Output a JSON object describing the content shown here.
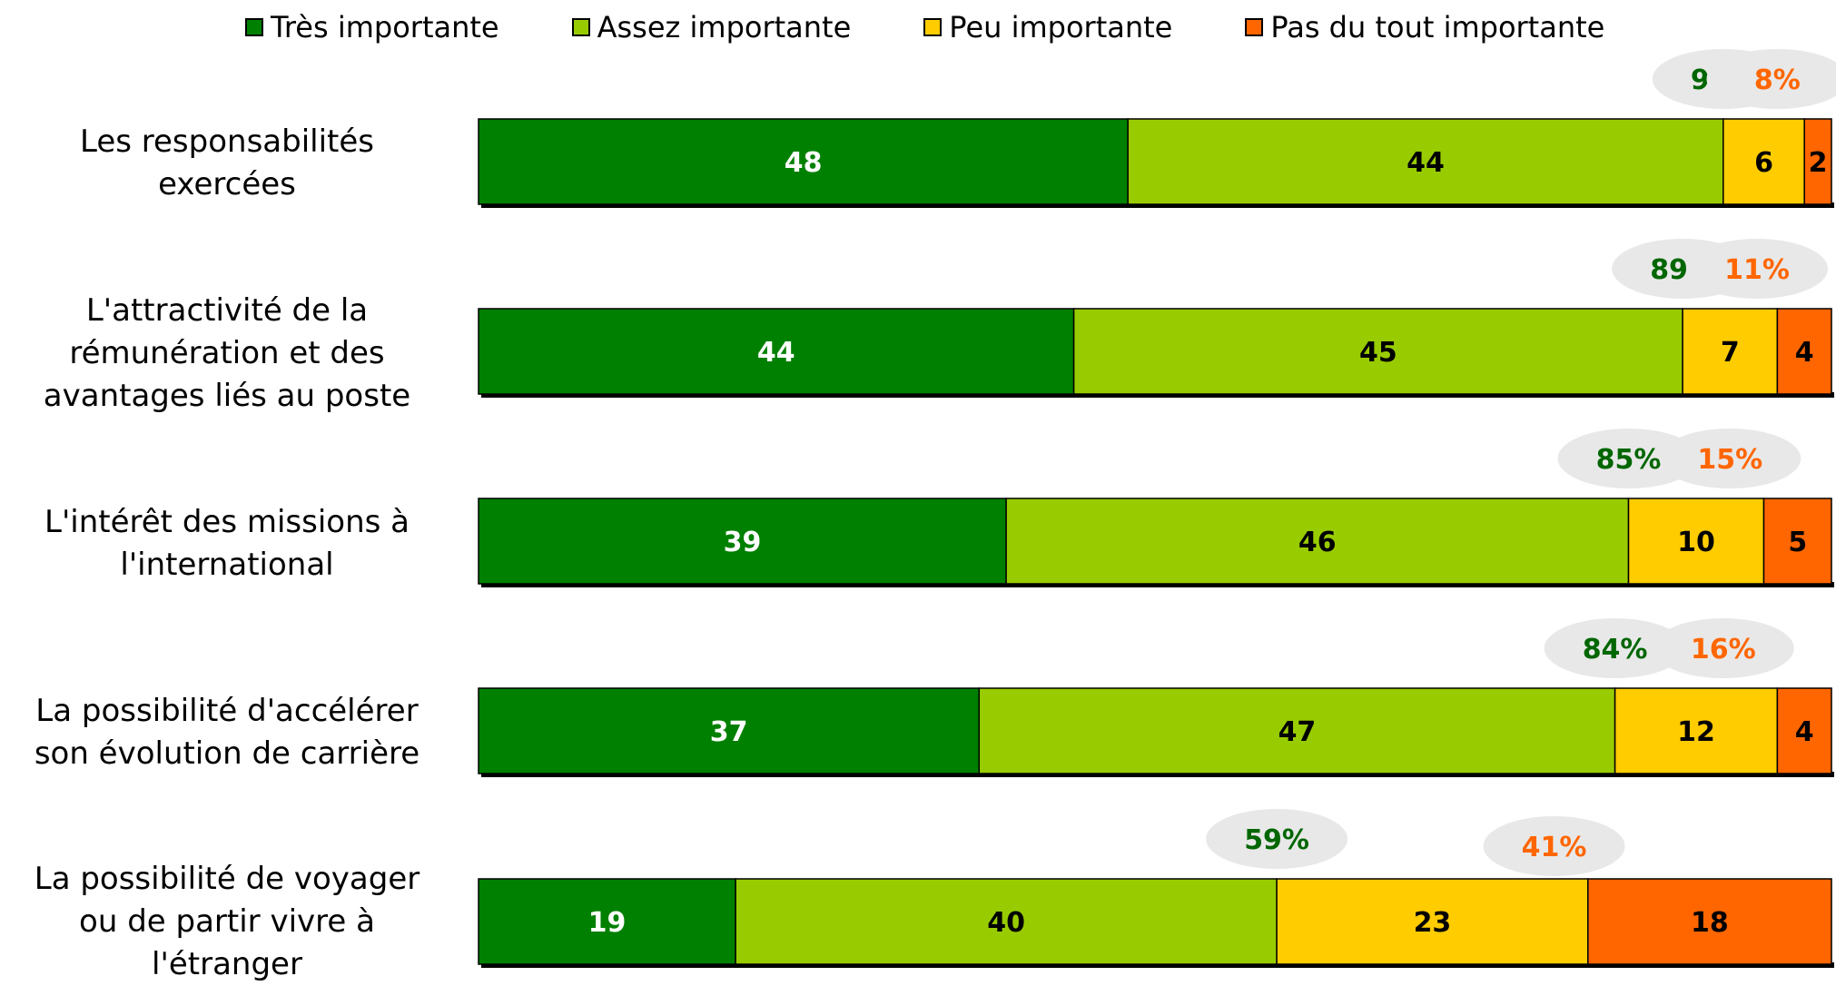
{
  "chart_data": {
    "type": "bar",
    "stacked": true,
    "orientation": "horizontal",
    "title": "",
    "xlabel": "",
    "ylabel": "",
    "xlim": [
      0,
      100
    ],
    "legend": {
      "placement": "top"
    },
    "grid": false,
    "categories": [
      "Les responsabilités\nexercées",
      "L'attractivité de la\nrémunération et des\navantages liés au poste",
      "L'intérêt des missions à\nl'international",
      "La possibilité d'accélérer\nson évolution de carrière",
      "La possibilité de voyager\nou de partir vivre à\nl'étranger"
    ],
    "series": [
      {
        "name": "Très importante",
        "color": "#008000",
        "label_color": "#ffffff",
        "values": [
          48,
          44,
          39,
          37,
          19
        ]
      },
      {
        "name": "Assez importante",
        "color": "#99CC00",
        "label_color": "#000000",
        "values": [
          44,
          45,
          46,
          47,
          40
        ]
      },
      {
        "name": "Peu importante",
        "color": "#FFCC00",
        "label_color": "#000000",
        "values": [
          6,
          7,
          10,
          12,
          23
        ]
      },
      {
        "name": "Pas du tout importante",
        "color": "#FF6600",
        "label_color": "#000000",
        "values": [
          2,
          4,
          5,
          4,
          18
        ]
      }
    ],
    "totals_important": [
      "92%",
      "89%",
      "85%",
      "84%",
      "59%"
    ],
    "totals_not_important": [
      "8%",
      "11%",
      "15%",
      "16%",
      "41%"
    ],
    "totals_important_color": "#006600",
    "totals_not_important_color": "#FF6600",
    "bubble_color": "#E8E8E8"
  }
}
